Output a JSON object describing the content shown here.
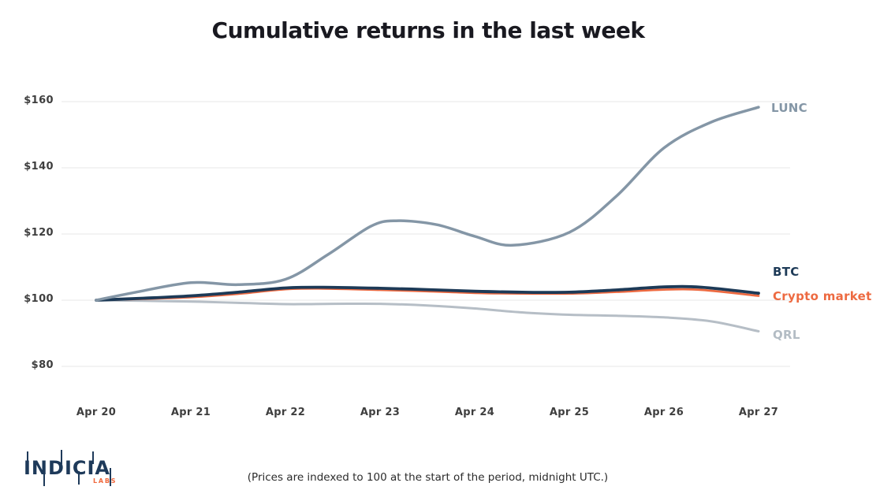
{
  "title": "Cumulative returns in the last week",
  "footnote": "(Prices are indexed to 100 at the start of the period, midnight UTC.)",
  "logo": {
    "name": "INDICIA",
    "sub": "LABS"
  },
  "colors": {
    "lunc": "#8496a6",
    "btc": "#1d3a57",
    "crypto_market": "#ed6a41",
    "qrl": "#b6bec6",
    "grid": "#e7e7e7",
    "tick_text": "#3e3e3e",
    "title_text": "#191920",
    "logo_navy": "#1e3a5a",
    "logo_orange": "#f0683c"
  },
  "chart_data": {
    "type": "line",
    "title": "Cumulative returns in the last week",
    "xlabel": "",
    "ylabel": "",
    "x_tick_labels": [
      "Apr 20",
      "Apr 21",
      "Apr 22",
      "Apr 23",
      "Apr 24",
      "Apr 25",
      "Apr 26",
      "Apr 27"
    ],
    "y_tick_labels": [
      "$160",
      "$140",
      "$120",
      "$100",
      "$80"
    ],
    "y_tick_values": [
      160,
      140,
      120,
      100,
      80
    ],
    "ylim": [
      80,
      160
    ],
    "grid": "horizontal-only",
    "legend_position": "labels-at-line-ends-right",
    "series": [
      {
        "name": "QRL",
        "color": "#b6bec6",
        "label_color": "#b3bcc4",
        "values": [
          100,
          99.6,
          98.8,
          98.9,
          97.5,
          95.6,
          94.8,
          90.6
        ],
        "path": [
          [
            0,
            100
          ],
          [
            0.5,
            99.8
          ],
          [
            1,
            99.6
          ],
          [
            1.5,
            99.2
          ],
          [
            2,
            98.8
          ],
          [
            2.5,
            98.9
          ],
          [
            3,
            98.9
          ],
          [
            3.5,
            98.4
          ],
          [
            4,
            97.5
          ],
          [
            4.5,
            96.3
          ],
          [
            5,
            95.6
          ],
          [
            5.5,
            95.3
          ],
          [
            6,
            94.8
          ],
          [
            6.5,
            93.6
          ],
          [
            7,
            90.6
          ]
        ]
      },
      {
        "name": "Crypto market",
        "color": "#ed6a41",
        "label_color": "#ed6a41",
        "values": [
          100,
          100.9,
          103.3,
          103.1,
          102.2,
          102.0,
          103.2,
          101.3
        ],
        "path": [
          [
            0,
            100
          ],
          [
            0.5,
            100.4
          ],
          [
            1,
            100.9
          ],
          [
            1.5,
            101.9
          ],
          [
            2,
            103.3
          ],
          [
            2.4,
            103.5
          ],
          [
            3,
            103.1
          ],
          [
            3.5,
            102.7
          ],
          [
            4,
            102.2
          ],
          [
            4.5,
            102.0
          ],
          [
            5,
            102.0
          ],
          [
            5.5,
            102.5
          ],
          [
            6,
            103.2
          ],
          [
            6.4,
            103.1
          ],
          [
            7,
            101.3
          ]
        ]
      },
      {
        "name": "BTC",
        "color": "#1d3a57",
        "label_color": "#1d3a57",
        "values": [
          100,
          101.3,
          103.7,
          103.6,
          102.7,
          102.4,
          104.0,
          102.1
        ],
        "path": [
          [
            0,
            100
          ],
          [
            0.5,
            100.6
          ],
          [
            1,
            101.3
          ],
          [
            1.5,
            102.4
          ],
          [
            2,
            103.7
          ],
          [
            2.4,
            103.9
          ],
          [
            3,
            103.6
          ],
          [
            3.5,
            103.2
          ],
          [
            4,
            102.7
          ],
          [
            4.5,
            102.4
          ],
          [
            5,
            102.4
          ],
          [
            5.5,
            103.1
          ],
          [
            6,
            104.0
          ],
          [
            6.4,
            103.9
          ],
          [
            7,
            102.1
          ]
        ]
      },
      {
        "name": "LUNC",
        "color": "#8496a6",
        "label_color": "#8496a6",
        "values": [
          100,
          105.3,
          106.3,
          123.5,
          119.3,
          120.5,
          146.0,
          158.3
        ],
        "path": [
          [
            0,
            100
          ],
          [
            0.4,
            102.3
          ],
          [
            1,
            105.3
          ],
          [
            1.5,
            104.7
          ],
          [
            2,
            106.3
          ],
          [
            2.45,
            113.8
          ],
          [
            2.9,
            122.3
          ],
          [
            3.17,
            124
          ],
          [
            3.6,
            122.8
          ],
          [
            4,
            119.3
          ],
          [
            4.4,
            116.6
          ],
          [
            5,
            120.5
          ],
          [
            5.5,
            131.5
          ],
          [
            6,
            146
          ],
          [
            6.5,
            153.8
          ],
          [
            7,
            158.3
          ]
        ]
      }
    ]
  }
}
